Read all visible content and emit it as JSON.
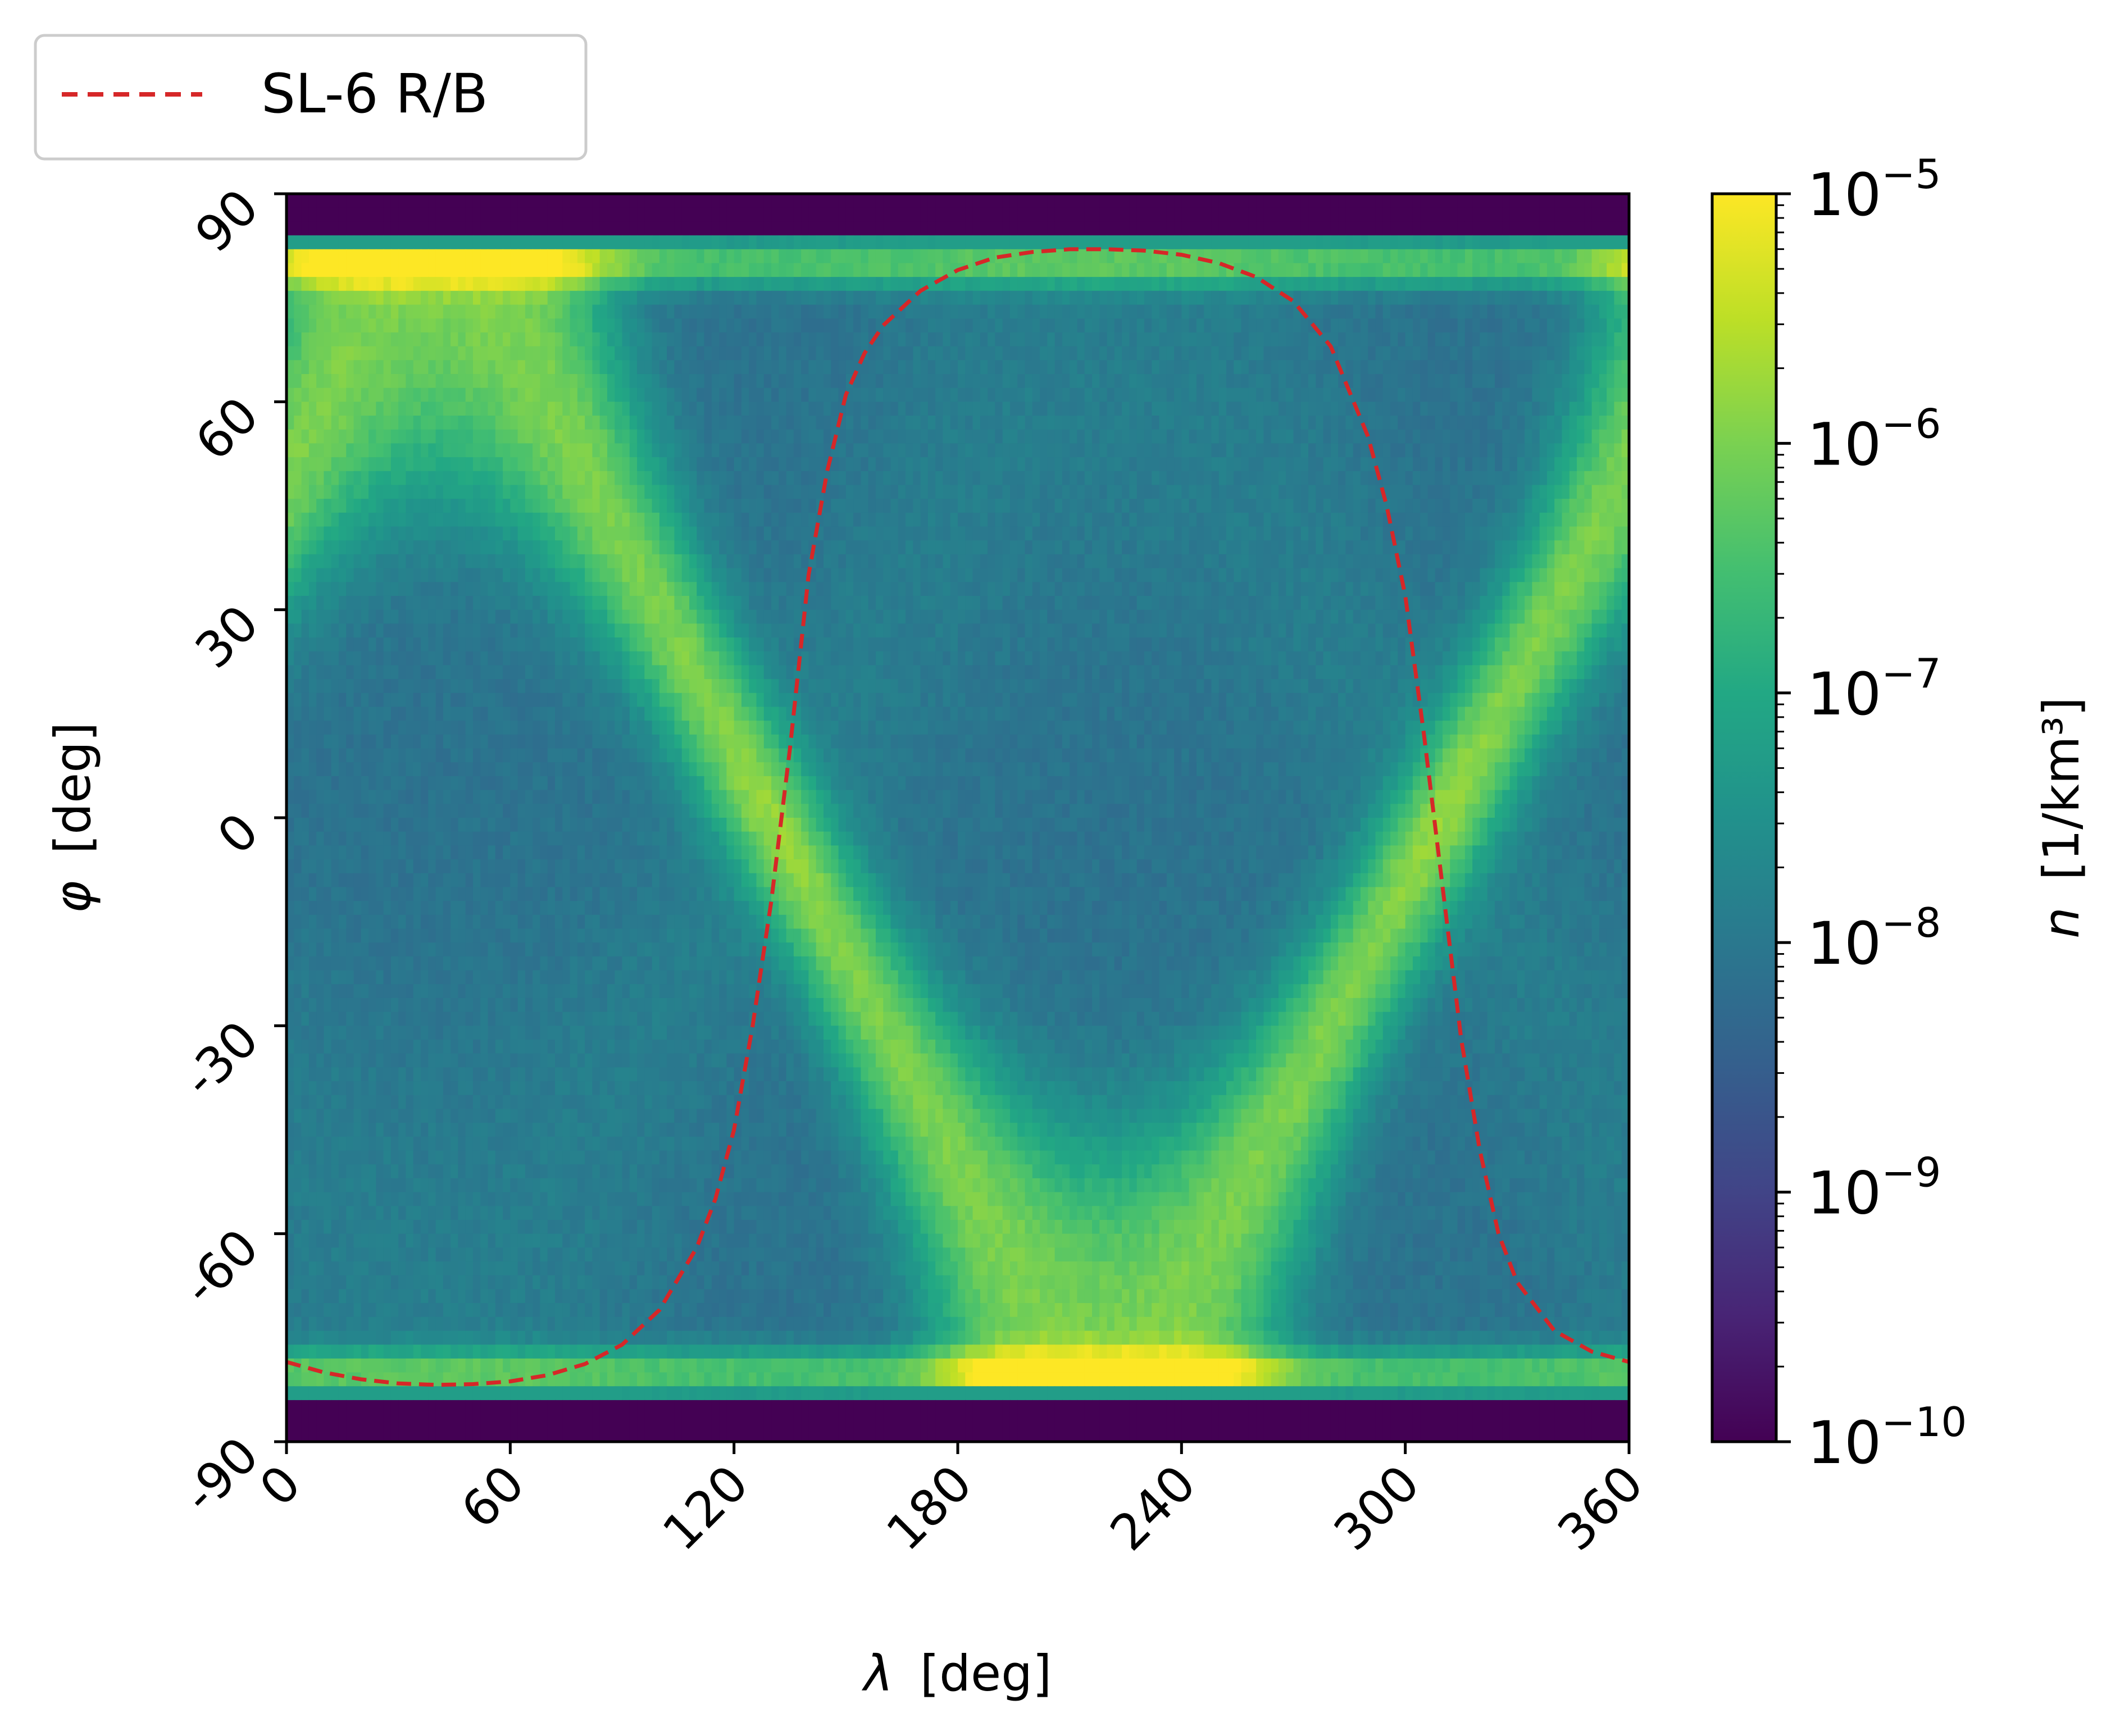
{
  "chart_data": {
    "type": "heatmap",
    "title": "",
    "xlabel_symbol": "λ",
    "xlabel_unit": "[deg]",
    "ylabel_symbol": "φ",
    "ylabel_unit": "[deg]",
    "xlim": [
      0,
      360
    ],
    "ylim": [
      -90,
      90
    ],
    "x_ticks": [
      0,
      60,
      120,
      180,
      240,
      300,
      360
    ],
    "y_ticks": [
      -90,
      -60,
      -30,
      0,
      30,
      60,
      90
    ],
    "x_tick_labels": [
      "0",
      "60",
      "120",
      "180",
      "240",
      "300",
      "360"
    ],
    "y_tick_labels": [
      "-90",
      "-60",
      "-30",
      "0",
      "30",
      "60",
      "90"
    ],
    "colorbar": {
      "label_symbol": "n",
      "label_unit": "[1/km³]",
      "scale": "log",
      "range": [
        1e-10,
        1e-05
      ],
      "colormap": "viridis",
      "tick_exponents": [
        "−10",
        "−9",
        "−8",
        "−7",
        "−6",
        "−5"
      ],
      "tick_base": "10"
    },
    "inclination_band_deg": 82,
    "legend": {
      "position": "top-left",
      "entries": [
        {
          "name": "SL-6 R/B",
          "style": "dashed",
          "color": "#d62728"
        }
      ]
    },
    "series": [
      {
        "name": "SL-6 R/B",
        "x": [
          0,
          10,
          20,
          30,
          40,
          50,
          60,
          70,
          80,
          90,
          100,
          110,
          115,
          120,
          125,
          130,
          135,
          140,
          145,
          150,
          155,
          160,
          170,
          180,
          190,
          200,
          210,
          220,
          230,
          240,
          250,
          260,
          270,
          280,
          290,
          295,
          300,
          305,
          310,
          315,
          320,
          325,
          330,
          340,
          350,
          360
        ],
        "y": [
          -78.5,
          -80,
          -81,
          -81.6,
          -81.8,
          -81.7,
          -81.3,
          -80.4,
          -78.8,
          -76,
          -71,
          -62,
          -55,
          -45,
          -30,
          -12,
          10,
          35,
          50,
          61,
          67,
          71,
          76,
          79,
          80.8,
          81.6,
          82,
          82,
          81.8,
          81.2,
          80,
          78,
          74.5,
          68,
          55,
          45,
          32,
          12,
          -10,
          -32,
          -48,
          -60,
          -67,
          -74,
          -77,
          -78.5
        ]
      }
    ]
  }
}
